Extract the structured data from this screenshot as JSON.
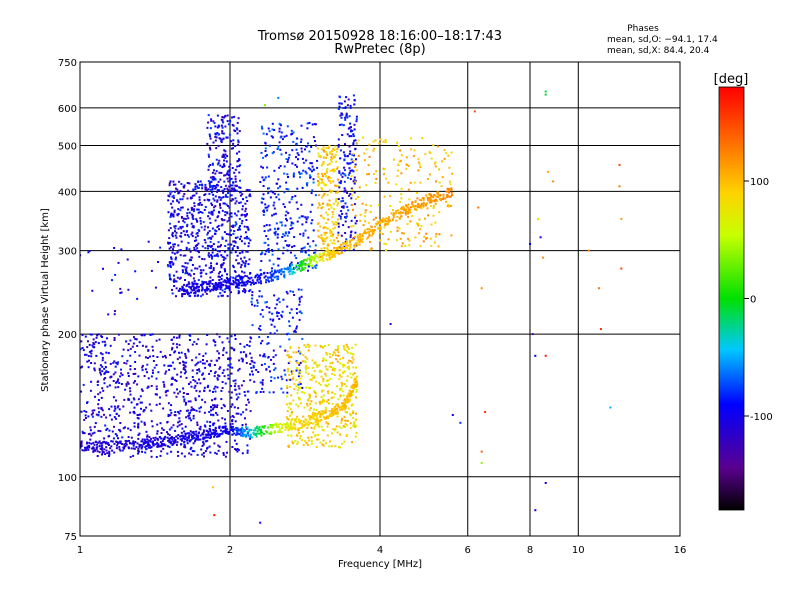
{
  "chart_data": {
    "type": "scatter",
    "title": "Tromsø 20150928 18:16:00–18:17:43",
    "subtitle": "RwPretec (8p)",
    "xlabel": "Frequency [MHz]",
    "ylabel": "Stationary phase Virtual Height [km]",
    "x_scale": "log",
    "y_scale": "log",
    "xlim": [
      1,
      16
    ],
    "ylim": [
      75,
      750
    ],
    "x_ticks": [
      1,
      2,
      4,
      6,
      8,
      10,
      16
    ],
    "y_ticks": [
      75,
      100,
      200,
      300,
      400,
      500,
      600,
      750
    ],
    "grid": true,
    "stats": {
      "heading": "Phases",
      "line1": "mean, sd,O: −94.1, 17.4",
      "line2": "mean, sd,X:  84.4, 20.4"
    },
    "colorbar": {
      "label": "[deg]",
      "range": [
        -180,
        180
      ],
      "ticks": [
        100,
        0,
        -100
      ]
    },
    "o_trace_lower": [
      {
        "x": 1.0,
        "y": 115,
        "phase": -110
      },
      {
        "x": 1.2,
        "y": 116,
        "phase": -108
      },
      {
        "x": 1.4,
        "y": 118,
        "phase": -105
      },
      {
        "x": 1.6,
        "y": 120,
        "phase": -102
      },
      {
        "x": 1.8,
        "y": 123,
        "phase": -100
      },
      {
        "x": 2.0,
        "y": 126,
        "phase": -98
      },
      {
        "x": 2.2,
        "y": 124,
        "phase": -40
      },
      {
        "x": 2.5,
        "y": 127,
        "phase": 60
      },
      {
        "x": 2.8,
        "y": 130,
        "phase": 85
      },
      {
        "x": 3.1,
        "y": 135,
        "phase": 95
      },
      {
        "x": 3.4,
        "y": 142,
        "phase": 100
      },
      {
        "x": 3.6,
        "y": 160,
        "phase": 105
      }
    ],
    "o_trace_upper": [
      {
        "x": 1.6,
        "y": 248,
        "phase": -105
      },
      {
        "x": 1.8,
        "y": 252,
        "phase": -102
      },
      {
        "x": 2.0,
        "y": 256,
        "phase": -100
      },
      {
        "x": 2.3,
        "y": 262,
        "phase": -95
      },
      {
        "x": 2.6,
        "y": 270,
        "phase": -60
      },
      {
        "x": 2.9,
        "y": 285,
        "phase": 40
      },
      {
        "x": 3.2,
        "y": 295,
        "phase": 95
      },
      {
        "x": 3.6,
        "y": 315,
        "phase": 100
      },
      {
        "x": 4.0,
        "y": 340,
        "phase": 105
      },
      {
        "x": 4.5,
        "y": 365,
        "phase": 110
      },
      {
        "x": 5.0,
        "y": 385,
        "phase": 115
      },
      {
        "x": 5.6,
        "y": 400,
        "phase": 120
      }
    ],
    "scatter_regions": [
      {
        "x": [
          1.0,
          2.2
        ],
        "y": [
          110,
          200
        ],
        "phase": -105,
        "count": 900
      },
      {
        "x": [
          1.5,
          2.2
        ],
        "y": [
          240,
          420
        ],
        "phase": -100,
        "count": 700
      },
      {
        "x": [
          1.8,
          2.1
        ],
        "y": [
          400,
          580
        ],
        "phase": -100,
        "count": 180
      },
      {
        "x": [
          2.2,
          2.8
        ],
        "y": [
          150,
          250
        ],
        "phase": -90,
        "count": 160
      },
      {
        "x": [
          2.3,
          3.0
        ],
        "y": [
          270,
          560
        ],
        "phase": -85,
        "count": 320
      },
      {
        "x": [
          2.6,
          3.6
        ],
        "y": [
          115,
          190
        ],
        "phase": 85,
        "count": 450
      },
      {
        "x": [
          3.0,
          3.3
        ],
        "y": [
          290,
          500
        ],
        "phase": 95,
        "count": 200
      },
      {
        "x": [
          3.3,
          3.6
        ],
        "y": [
          300,
          640
        ],
        "phase": -95,
        "count": 180
      },
      {
        "x": [
          3.5,
          5.6
        ],
        "y": [
          300,
          520
        ],
        "phase": 100,
        "count": 220
      },
      {
        "x": [
          1.0,
          1.5
        ],
        "y": [
          220,
          320
        ],
        "phase": -105,
        "count": 25
      }
    ],
    "isolated_points": [
      {
        "x": 1.85,
        "y": 95,
        "phase": 95
      },
      {
        "x": 1.86,
        "y": 83,
        "phase": 170
      },
      {
        "x": 2.3,
        "y": 80,
        "phase": -100
      },
      {
        "x": 2.35,
        "y": 608,
        "phase": 30
      },
      {
        "x": 2.5,
        "y": 630,
        "phase": -60
      },
      {
        "x": 3.3,
        "y": 180,
        "phase": 120
      },
      {
        "x": 4.2,
        "y": 210,
        "phase": -120
      },
      {
        "x": 5.6,
        "y": 135,
        "phase": -100
      },
      {
        "x": 5.8,
        "y": 130,
        "phase": -80
      },
      {
        "x": 6.2,
        "y": 590,
        "phase": 150
      },
      {
        "x": 6.3,
        "y": 370,
        "phase": 130
      },
      {
        "x": 6.4,
        "y": 250,
        "phase": 120
      },
      {
        "x": 6.4,
        "y": 113,
        "phase": 140
      },
      {
        "x": 6.5,
        "y": 137,
        "phase": 160
      },
      {
        "x": 6.4,
        "y": 107,
        "phase": 40
      },
      {
        "x": 8.0,
        "y": 310,
        "phase": -90
      },
      {
        "x": 8.1,
        "y": 200,
        "phase": -130
      },
      {
        "x": 8.2,
        "y": 180,
        "phase": -90
      },
      {
        "x": 8.3,
        "y": 350,
        "phase": 80
      },
      {
        "x": 8.4,
        "y": 320,
        "phase": -100
      },
      {
        "x": 8.5,
        "y": 290,
        "phase": 120
      },
      {
        "x": 8.6,
        "y": 180,
        "phase": 170
      },
      {
        "x": 8.6,
        "y": 650,
        "phase": -10
      },
      {
        "x": 8.6,
        "y": 640,
        "phase": -10
      },
      {
        "x": 8.6,
        "y": 97,
        "phase": -100
      },
      {
        "x": 8.2,
        "y": 85,
        "phase": -100
      },
      {
        "x": 8.7,
        "y": 440,
        "phase": 110
      },
      {
        "x": 8.9,
        "y": 420,
        "phase": 120
      },
      {
        "x": 11.0,
        "y": 250,
        "phase": 130
      },
      {
        "x": 11.1,
        "y": 205,
        "phase": 160
      },
      {
        "x": 11.6,
        "y": 140,
        "phase": -50
      },
      {
        "x": 12.1,
        "y": 455,
        "phase": 150
      },
      {
        "x": 12.1,
        "y": 410,
        "phase": 130
      },
      {
        "x": 12.2,
        "y": 350,
        "phase": 110
      },
      {
        "x": 12.2,
        "y": 275,
        "phase": 150
      },
      {
        "x": 10.5,
        "y": 300,
        "phase": 120
      }
    ]
  }
}
